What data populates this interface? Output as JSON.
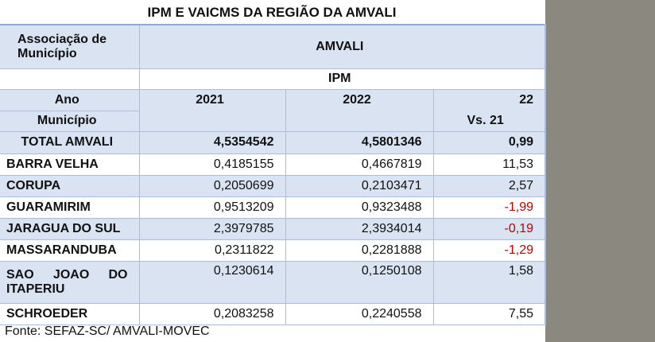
{
  "title": "IPM E VAICMS DA REGIÃO DA AMVALI",
  "header": {
    "assoc_label": "Associação de Município",
    "assoc_value": "AMVALI",
    "metric": "IPM",
    "ano_label": "Ano",
    "municipio_label": "Município",
    "col_2021": "2021",
    "col_2022": "2022",
    "col_var_line1": "22",
    "col_var_line2": "Vs. 21"
  },
  "total": {
    "name": "TOTAL AMVALI",
    "v2021": "4,5354542",
    "v2022": "4,5801346",
    "var": "0,99"
  },
  "rows": [
    {
      "name": "BARRA VELHA",
      "v2021": "0,4185155",
      "v2022": "0,4667819",
      "var": "11,53"
    },
    {
      "name": "CORUPA",
      "v2021": "0,2050699",
      "v2022": "0,2103471",
      "var": "2,57"
    },
    {
      "name": "GUARAMIRIM",
      "v2021": "0,9513209",
      "v2022": "0,9323488",
      "var": "-1,99"
    },
    {
      "name": "JARAGUA DO SUL",
      "v2021": "2,3979785",
      "v2022": "2,3934014",
      "var": "-0,19"
    },
    {
      "name": "MASSARANDUBA",
      "v2021": "0,2311822",
      "v2022": "0,2281888",
      "var": "-1,29"
    },
    {
      "name": "SAO JOAO DO ITAPERIU",
      "v2021": "0,1230614",
      "v2022": "0,1250108",
      "var": "1,58"
    },
    {
      "name": "SCHROEDER",
      "v2021": "0,2083258",
      "v2022": "0,2240558",
      "var": "7,55"
    }
  ],
  "colors": {
    "row_blue": "#dae3f2",
    "negative": "#c00000",
    "border": "#a9bde0"
  },
  "source": "Fonte: SEFAZ-SC/ AMVALI-MOVEC"
}
